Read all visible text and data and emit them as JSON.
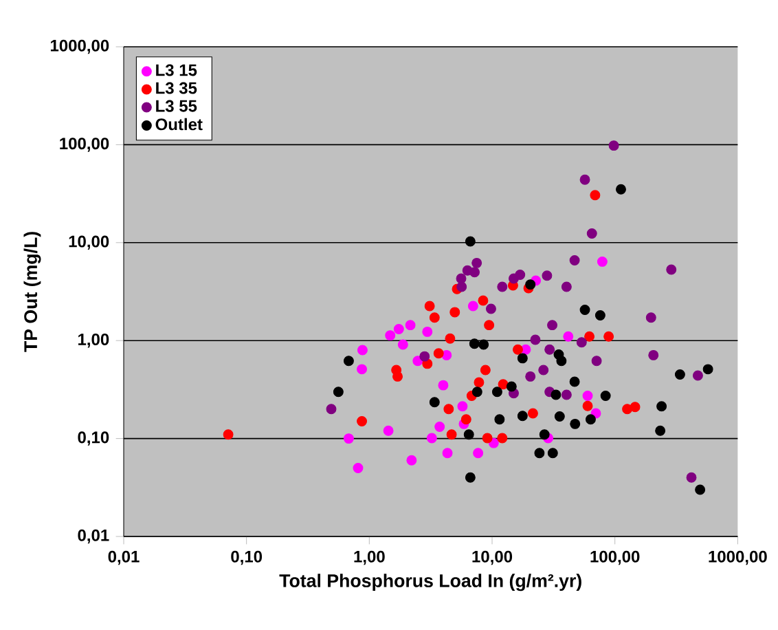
{
  "chart_data": {
    "type": "scatter",
    "xlabel": "Total Phosphorus Load In (g/m².yr)",
    "ylabel": "TP Out (mg/L)",
    "log": "xy",
    "grid": "y",
    "legend": "top left",
    "marker": "circle",
    "xlim": [
      0.01,
      1000
    ],
    "ylim": [
      0.01,
      1000
    ],
    "xticks": [
      {
        "value": 0.01,
        "label": "0,01"
      },
      {
        "value": 0.1,
        "label": "0,10"
      },
      {
        "value": 1,
        "label": "1,00"
      },
      {
        "value": 10,
        "label": "10,00"
      },
      {
        "value": 100,
        "label": "100,00"
      },
      {
        "value": 1000,
        "label": "1000,00"
      }
    ],
    "yticks": [
      {
        "value": 0.01,
        "label": "0,01"
      },
      {
        "value": 0.1,
        "label": "0,10"
      },
      {
        "value": 1,
        "label": "1,00"
      },
      {
        "value": 10,
        "label": "10,00"
      },
      {
        "value": 100,
        "label": "100,00"
      },
      {
        "value": 1000,
        "label": "1000,00"
      }
    ],
    "series": [
      {
        "name": "L3 15",
        "color": "#ff00ff",
        "x": [
          0.88,
          0.87,
          1.48,
          1.74,
          2.16,
          1.88,
          0.68,
          0.81,
          1.43,
          2.21,
          22.7,
          79,
          7.0,
          2.97,
          41.7,
          18.8,
          2.48,
          4.26,
          4.0,
          3.74,
          3.23,
          4.33,
          5.74,
          5.89,
          7.69,
          10.3,
          60,
          70,
          28.6
        ],
        "values": [
          0.8,
          0.51,
          1.13,
          1.31,
          1.44,
          0.91,
          0.1,
          0.05,
          0.12,
          0.06,
          4.1,
          6.4,
          2.25,
          1.23,
          1.1,
          0.81,
          0.62,
          0.71,
          0.35,
          0.132,
          0.101,
          0.071,
          0.213,
          0.141,
          0.071,
          0.09,
          0.273,
          0.181,
          0.101
        ]
      },
      {
        "name": "L3 35",
        "color": "#ff0000",
        "x": [
          0.071,
          0.87,
          1.66,
          1.7,
          69,
          5.18,
          14.8,
          19.8,
          3.1,
          3.4,
          4.97,
          8.45,
          9.45,
          4.55,
          62,
          89,
          16.2,
          2.97,
          3.67,
          8.83,
          4.43,
          4.68,
          6.15,
          7.82,
          6.82,
          9.15,
          12.1,
          12.3,
          21.5,
          60,
          126,
          146
        ],
        "values": [
          0.11,
          0.15,
          0.5,
          0.43,
          30.5,
          3.36,
          3.66,
          3.43,
          2.25,
          1.72,
          1.95,
          2.56,
          1.44,
          1.05,
          1.1,
          1.1,
          0.81,
          0.58,
          0.74,
          0.5,
          0.2,
          0.11,
          0.157,
          0.374,
          0.273,
          0.101,
          0.101,
          0.358,
          0.181,
          0.215,
          0.2,
          0.21
        ]
      },
      {
        "name": "L3 55",
        "color": "#800080",
        "x": [
          0.49,
          98,
          57,
          65,
          47,
          288,
          7.5,
          6.3,
          7.2,
          5.6,
          16.9,
          15,
          28,
          5.65,
          12.1,
          40.4,
          9.8,
          197,
          30.9,
          22.5,
          53.6,
          29.4,
          71,
          206,
          2.82,
          15,
          20.5,
          26.2,
          29.4,
          40.4,
          474,
          420
        ],
        "values": [
          0.2,
          98,
          44,
          12.4,
          6.6,
          5.3,
          6.2,
          5.2,
          5.0,
          4.3,
          4.7,
          4.3,
          4.6,
          3.54,
          3.54,
          3.54,
          2.11,
          1.72,
          1.44,
          1.02,
          0.96,
          0.81,
          0.62,
          0.71,
          0.69,
          0.29,
          0.43,
          0.5,
          0.3,
          0.28,
          0.44,
          0.04
        ]
      },
      {
        "name": "Outlet",
        "color": "#000000",
        "x": [
          112,
          6.65,
          20.5,
          0.68,
          0.56,
          57,
          76,
          7.18,
          8.53,
          17.7,
          34.9,
          36.7,
          3.4,
          6.47,
          6.65,
          7.56,
          11.0,
          14.4,
          11.5,
          17.7,
          47,
          33.1,
          84,
          63.5,
          35.5,
          47.4,
          26.7,
          24.3,
          31.2,
          240,
          234,
          339,
          573,
          494
        ],
        "values": [
          35,
          10.3,
          3.74,
          0.62,
          0.3,
          2.06,
          1.81,
          0.93,
          0.91,
          0.66,
          0.72,
          0.62,
          0.235,
          0.11,
          0.04,
          0.3,
          0.3,
          0.34,
          0.157,
          0.17,
          0.38,
          0.28,
          0.273,
          0.157,
          0.168,
          0.141,
          0.11,
          0.071,
          0.071,
          0.213,
          0.12,
          0.45,
          0.51,
          0.03
        ]
      }
    ]
  }
}
